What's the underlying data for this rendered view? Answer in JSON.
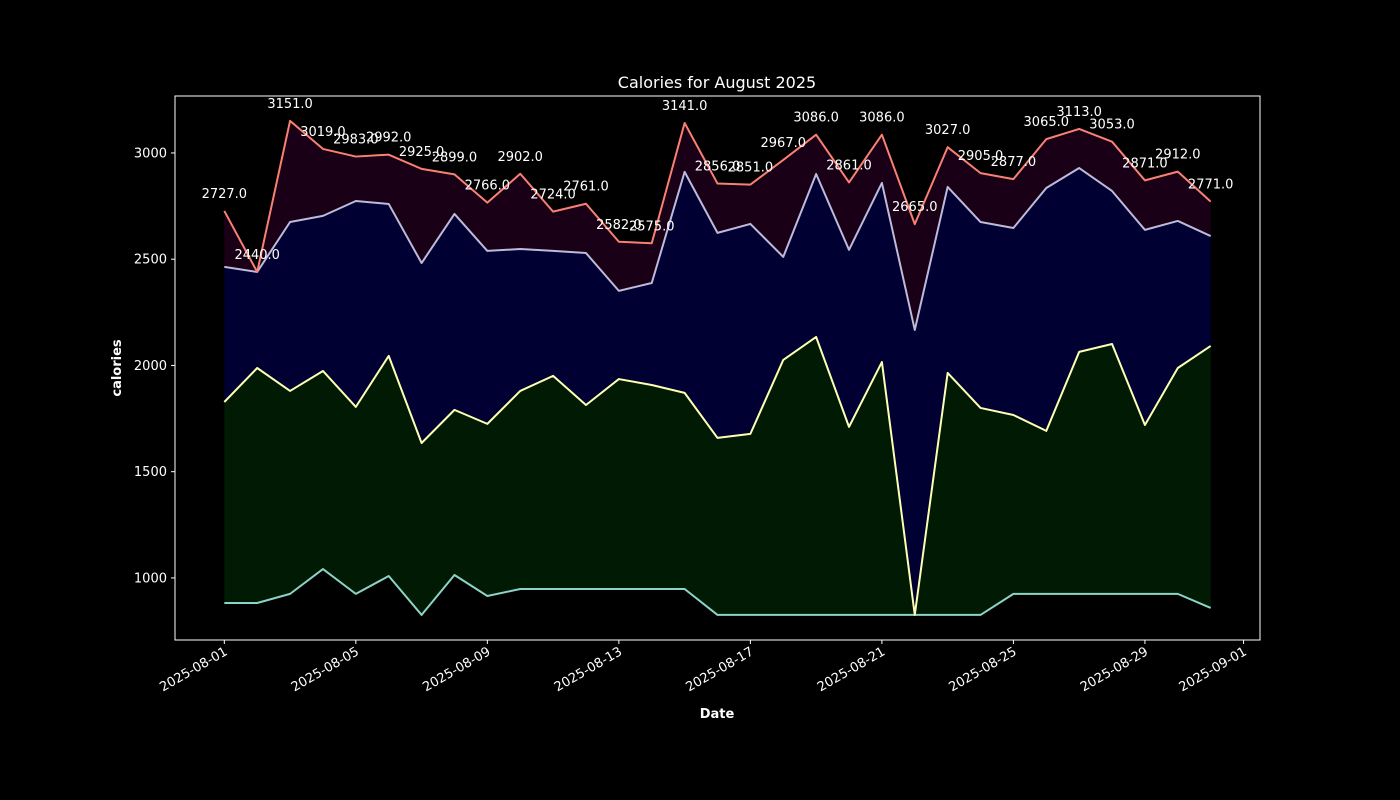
{
  "chart_data": {
    "type": "area",
    "stacked": true,
    "title": "Calories for August 2025",
    "xlabel": "Date",
    "ylabel": "calories",
    "xlim": [
      "2025-07-30T12:00",
      "2025-09-01T12:00"
    ],
    "ylim": [
      708,
      3268
    ],
    "x_ticks": [
      "2025-08-01",
      "2025-08-05",
      "2025-08-09",
      "2025-08-13",
      "2025-08-17",
      "2025-08-21",
      "2025-08-25",
      "2025-08-29",
      "2025-09-01"
    ],
    "y_ticks": [
      1000,
      1500,
      2000,
      2500,
      3000
    ],
    "grid": false,
    "legend": "none",
    "background": "#000000",
    "start_date": "2025-08-01",
    "series": [
      {
        "line_color": "#8dd3c7",
        "fill_color": null,
        "values": [
          882,
          882,
          925,
          1042,
          925,
          1009,
          826,
          1014,
          915,
          948,
          948,
          948,
          948,
          948,
          948,
          826,
          826,
          826,
          826,
          826,
          826,
          826,
          826,
          826,
          925,
          925,
          925,
          925,
          925,
          925,
          859
        ]
      },
      {
        "line_color": "#ffffb3",
        "fill_color": "#001a04",
        "values": [
          1828,
          1988,
          1880,
          1974,
          1805,
          2045,
          1635,
          1791,
          1725,
          1880,
          1951,
          1814,
          1936,
          1908,
          1871,
          1659,
          1678,
          2026,
          2134,
          1711,
          2016,
          826,
          1965,
          1800,
          1767,
          1692,
          2064,
          2101,
          1720,
          1988,
          2092
        ]
      },
      {
        "line_color": "#bebada",
        "fill_color": "#000033",
        "values": [
          2464,
          2440,
          2675,
          2704,
          2774,
          2760,
          2482,
          2713,
          2539,
          2548,
          2539,
          2529,
          2351,
          2388,
          2911,
          2624,
          2666,
          2511,
          2901,
          2544,
          2859,
          2167,
          2840,
          2675,
          2647,
          2835,
          2929,
          2821,
          2638,
          2680,
          2609
        ]
      },
      {
        "line_color": "#fa8072",
        "fill_color": "#190016",
        "values": [
          2727,
          2440,
          3151,
          3019,
          2983,
          2992,
          2925,
          2899,
          2766,
          2902,
          2724,
          2761,
          2582,
          2575,
          3141,
          2856,
          2851,
          2967,
          3086,
          2861,
          3086,
          2665,
          3027,
          2905,
          2877,
          3065,
          3113,
          3053,
          2871,
          2912,
          2771
        ],
        "data_labels": [
          "2727.0",
          "2440.0",
          "3151.0",
          "3019.0",
          "2983.0",
          "2992.0",
          "2925.0",
          "2899.0",
          "2766.0",
          "2902.0",
          "2724.0",
          "2761.0",
          "2582.0",
          "2575.0",
          "3141.0",
          "2856.0",
          "2851.0",
          "2967.0",
          "3086.0",
          "2861.0",
          "3086.0",
          "2665.0",
          "3027.0",
          "2905.0",
          "2877.0",
          "3065.0",
          "3113.0",
          "3053.0",
          "2871.0",
          "2912.0",
          "2771.0"
        ]
      }
    ]
  }
}
